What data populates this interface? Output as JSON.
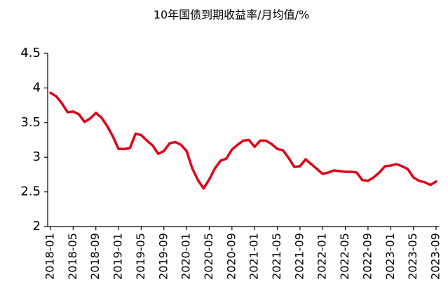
{
  "chart_data": {
    "type": "line",
    "title": "10年国债到期收益率/月均值/%",
    "categories": [
      "2018-01",
      null,
      null,
      null,
      "2018-05",
      null,
      null,
      null,
      "2018-09",
      null,
      null,
      null,
      "2019-01",
      null,
      null,
      null,
      "2019-05",
      null,
      null,
      null,
      "2019-09",
      null,
      null,
      null,
      "2020-01",
      null,
      null,
      null,
      "2020-05",
      null,
      null,
      null,
      "2020-09",
      null,
      null,
      null,
      "2021-01",
      null,
      null,
      null,
      "2021-05",
      null,
      null,
      null,
      "2021-09",
      null,
      null,
      null,
      "2022-01",
      null,
      null,
      null,
      "2022-05",
      null,
      null,
      null,
      "2022-09",
      null,
      null,
      null,
      "2023-01",
      null,
      null,
      null,
      "2023-05",
      null,
      null,
      null,
      "2023-09"
    ],
    "values": [
      3.93,
      3.88,
      3.78,
      3.65,
      3.66,
      3.62,
      3.51,
      3.56,
      3.64,
      3.57,
      3.45,
      3.3,
      3.12,
      3.12,
      3.13,
      3.34,
      3.32,
      3.24,
      3.17,
      3.05,
      3.09,
      3.2,
      3.22,
      3.18,
      3.09,
      2.84,
      2.67,
      2.55,
      2.68,
      2.84,
      2.95,
      2.98,
      3.11,
      3.18,
      3.24,
      3.25,
      3.15,
      3.24,
      3.24,
      3.19,
      3.12,
      3.1,
      2.99,
      2.86,
      2.87,
      2.97,
      2.9,
      2.83,
      2.76,
      2.78,
      2.81,
      2.8,
      2.79,
      2.79,
      2.78,
      2.67,
      2.66,
      2.71,
      2.78,
      2.87,
      2.88,
      2.9,
      2.87,
      2.83,
      2.71,
      2.66,
      2.64,
      2.6,
      2.65
    ],
    "color": "#e0001b",
    "ylim": [
      2,
      4.5
    ],
    "yticks": [
      2,
      2.5,
      3,
      3.5,
      4,
      4.5
    ],
    "grid": false
  }
}
